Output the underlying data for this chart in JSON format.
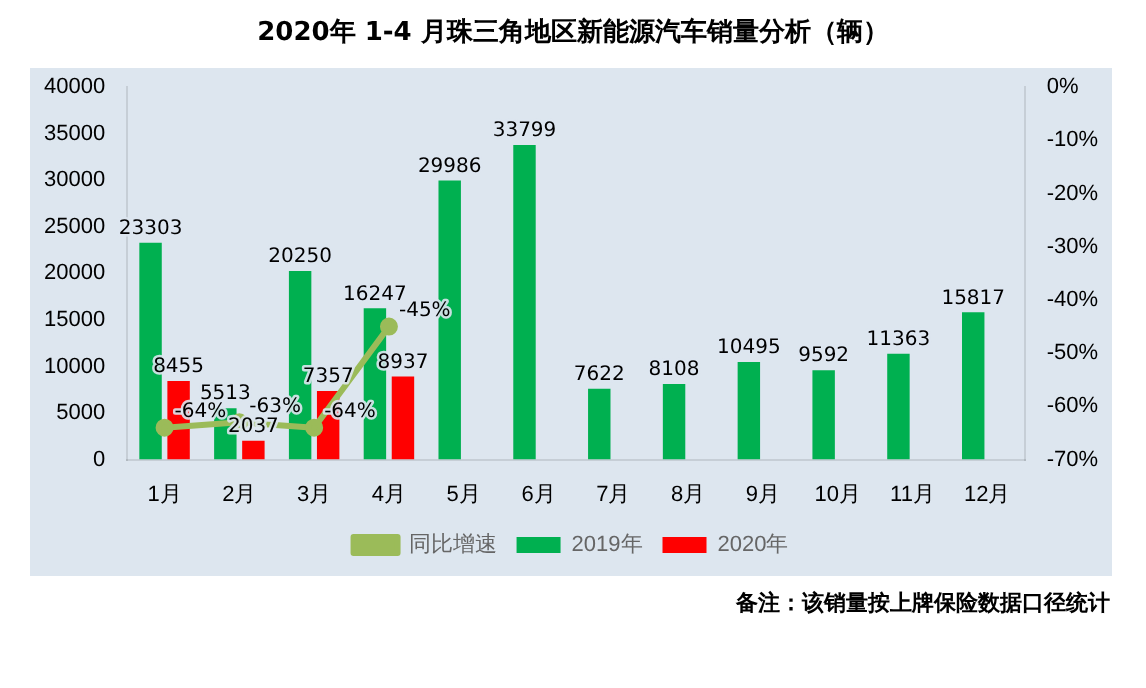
{
  "chart_data": {
    "type": "bar",
    "title": "2020年 1-4 月珠三角地区新能源汽车销量分析（辆）",
    "categories": [
      "1月",
      "2月",
      "3月",
      "4月",
      "5月",
      "6月",
      "7月",
      "8月",
      "9月",
      "10月",
      "11月",
      "12月"
    ],
    "series": [
      {
        "name": "2019年",
        "color": "#00b050",
        "values": [
          23303,
          5513,
          20250,
          16247,
          29986,
          33799,
          7622,
          8108,
          10495,
          9592,
          11363,
          15817
        ],
        "value_labels": [
          "23303",
          "5513",
          "20250",
          "16247",
          "29986",
          "33799",
          "7622",
          "8108",
          "10495",
          "9592",
          "11363",
          "15817"
        ]
      },
      {
        "name": "2020年",
        "color": "#ff0000",
        "values": [
          8455,
          2037,
          7357,
          8937,
          null,
          null,
          null,
          null,
          null,
          null,
          null,
          null
        ],
        "value_labels": [
          "8455",
          "2037",
          "7357",
          "8937",
          null,
          null,
          null,
          null,
          null,
          null,
          null,
          null
        ]
      },
      {
        "name": "同比增速",
        "type": "line",
        "axis": "y2",
        "color": "#9bbb59",
        "values": [
          -64,
          -63,
          -64,
          -45,
          null,
          null,
          null,
          null,
          null,
          null,
          null,
          null
        ],
        "value_labels": [
          "-64%",
          "-63%",
          "-64%",
          "-45%",
          null,
          null,
          null,
          null,
          null,
          null,
          null,
          null
        ]
      }
    ],
    "ylim": [
      0,
      40000
    ],
    "yticks": [
      0,
      5000,
      10000,
      15000,
      20000,
      25000,
      30000,
      35000,
      40000
    ],
    "y2lim": [
      -70,
      0
    ],
    "y2ticks": [
      {
        "value": -70,
        "label": "-70%"
      },
      {
        "value": -60,
        "label": "-60%"
      },
      {
        "value": -50,
        "label": "-50%"
      },
      {
        "value": -40,
        "label": "-40%"
      },
      {
        "value": -30,
        "label": "-30%"
      },
      {
        "value": -20,
        "label": "-20%"
      },
      {
        "value": -10,
        "label": "-10%"
      },
      {
        "value": 0,
        "label": "0%"
      }
    ],
    "grid": false,
    "legend": "bottom",
    "marker": "circle",
    "annotations": [
      "备注：该销量按上牌保险数据口径统计"
    ]
  }
}
